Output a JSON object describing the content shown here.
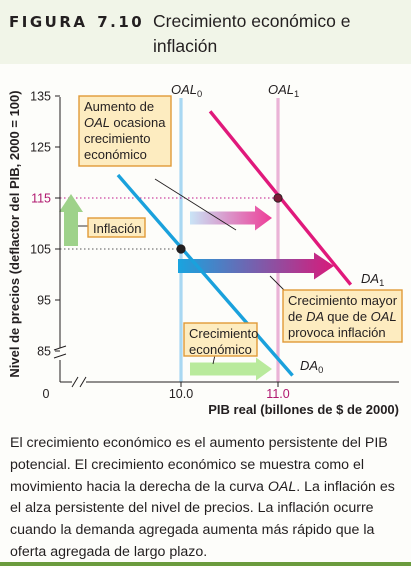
{
  "figure": {
    "label": "FIGURA",
    "number": "7.10",
    "title": "Crecimiento económico e inflación"
  },
  "caption": "El crecimiento económico es el aumento persistente del PIB potencial. El crecimiento económico se muestra como el movimiento hacia la derecha de la curva OAL. La inflación es el alza persistente del nivel de precios. La inflación ocurre cuando la demanda agregada aumenta más rápido que la oferta agregada de largo plazo.",
  "colors": {
    "header_bg": "#f1f5e8",
    "oal_line": "#a9d8f2",
    "oal1_line": "#eab3d6",
    "da0_line": "#1aa1dc",
    "da1_line": "#e0197b",
    "equilibrium_dot": "#7a1a37",
    "callout_bg": "#fdecc0",
    "callout_border": "#e09a38",
    "inflation_arrow": "#9ed28a",
    "growth_arrow": "#b9ea9c",
    "accent_rule": "#6a9b3c"
  },
  "chart_data": {
    "type": "line",
    "xlabel": "PIB real (billones de $ de 2000)",
    "ylabel": "Nivel de precios (deflactor del PIB, 2000 = 100)",
    "xlim": [
      9.0,
      12.1
    ],
    "ylim": [
      75,
      135
    ],
    "axis_break_y": true,
    "x_ticks": [
      10.0,
      11.0
    ],
    "x_tick_labels": [
      "10.0",
      "11.0"
    ],
    "x_origin_label": "0",
    "y_ticks": [
      85,
      95,
      105,
      115,
      125,
      135
    ],
    "y_tick_labels": [
      "85",
      "95",
      "105",
      "115",
      "125",
      "135"
    ],
    "grid": false,
    "series": [
      {
        "name": "OAL0",
        "label_main": "OAL",
        "label_sub": "0",
        "kind": "vertical",
        "x": 10.0,
        "color": "#a9d8f2"
      },
      {
        "name": "OAL1",
        "label_main": "OAL",
        "label_sub": "1",
        "kind": "vertical",
        "x": 11.0,
        "color": "#eab3d6"
      },
      {
        "name": "DA0",
        "label_main": "DA",
        "label_sub": "0",
        "kind": "line",
        "x": [
          9.35,
          11.15
        ],
        "y": [
          119.5,
          80.2
        ],
        "color": "#1aa1dc"
      },
      {
        "name": "DA1",
        "label_main": "DA",
        "label_sub": "1",
        "kind": "line",
        "x": [
          10.3,
          11.75
        ],
        "y": [
          132,
          98
        ],
        "color": "#e0197b"
      }
    ],
    "equilibria": [
      {
        "x": 10.0,
        "y": 105,
        "color": "#231f20"
      },
      {
        "x": 11.0,
        "y": 115,
        "color": "#7a1a37"
      }
    ],
    "annotations": [
      {
        "id": "oal-shift",
        "lines": [
          "Aumento de",
          "OAL ocasiona",
          "crecimiento",
          "económico"
        ],
        "italic_word": "OAL"
      },
      {
        "id": "inflation",
        "lines": [
          "Inflación"
        ]
      },
      {
        "id": "da-shift",
        "lines": [
          "Crecimiento mayor",
          "de DA que de OAL",
          "provoca inflación"
        ],
        "italic_words": [
          "DA",
          "OAL"
        ]
      },
      {
        "id": "growth",
        "lines": [
          "Crecimiento",
          "económico"
        ]
      }
    ]
  }
}
